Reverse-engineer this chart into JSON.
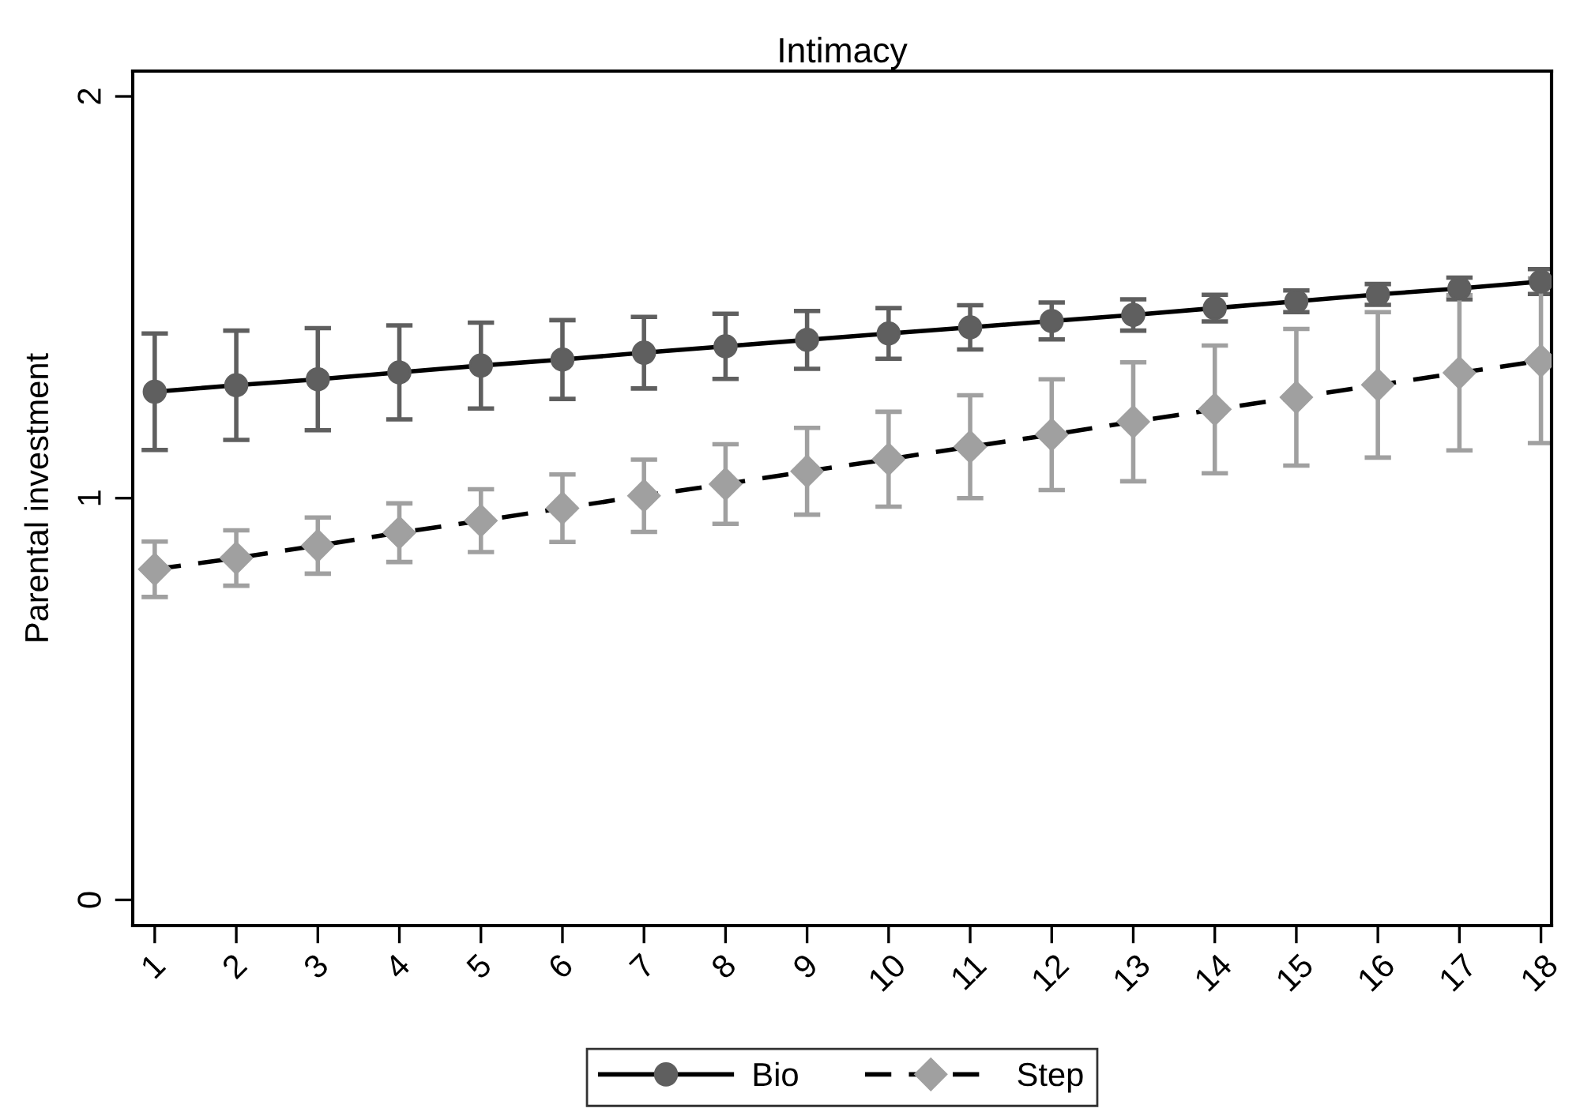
{
  "chart_data": {
    "type": "line",
    "title": "Intimacy",
    "ylabel": "Parental investment",
    "x": [
      1,
      2,
      3,
      4,
      5,
      6,
      7,
      8,
      9,
      10,
      11,
      12,
      13,
      14,
      15,
      16,
      17,
      18
    ],
    "xlim": [
      0.73,
      18.13
    ],
    "xticks": [
      1,
      2,
      3,
      4,
      5,
      6,
      7,
      8,
      9,
      10,
      11,
      12,
      13,
      14,
      15,
      16,
      17,
      18
    ],
    "ylim": [
      -0.064,
      2.063
    ],
    "yticks": [
      0,
      1,
      2
    ],
    "grid": false,
    "legend": "bottom",
    "series": [
      {
        "name": "Bio",
        "color": "#5f5f5f",
        "marker": "circle",
        "line_style": "solid",
        "values": [
          1.265,
          1.281,
          1.296,
          1.313,
          1.33,
          1.345,
          1.362,
          1.378,
          1.394,
          1.41,
          1.425,
          1.441,
          1.456,
          1.473,
          1.49,
          1.507,
          1.522,
          1.539
        ],
        "errors": [
          0.145,
          0.136,
          0.127,
          0.117,
          0.107,
          0.098,
          0.089,
          0.081,
          0.072,
          0.063,
          0.055,
          0.046,
          0.039,
          0.033,
          0.027,
          0.026,
          0.027,
          0.031
        ]
      },
      {
        "name": "Step",
        "color": "#a0a0a0",
        "marker": "diamond",
        "line_style": "dashed",
        "values": [
          0.823,
          0.851,
          0.882,
          0.914,
          0.944,
          0.975,
          1.006,
          1.035,
          1.067,
          1.097,
          1.128,
          1.158,
          1.19,
          1.221,
          1.251,
          1.282,
          1.312,
          1.342
        ],
        "errors": [
          0.069,
          0.069,
          0.07,
          0.073,
          0.078,
          0.084,
          0.09,
          0.099,
          0.108,
          0.118,
          0.128,
          0.138,
          0.148,
          0.159,
          0.17,
          0.181,
          0.193,
          0.205
        ]
      }
    ]
  }
}
